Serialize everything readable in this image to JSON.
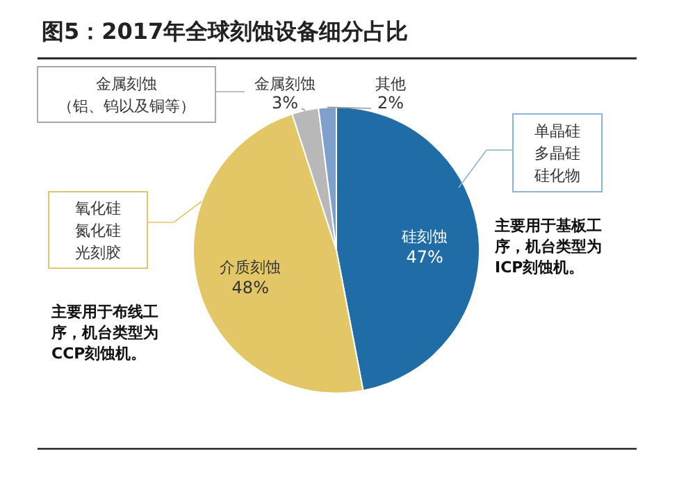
{
  "chart_data": {
    "type": "pie",
    "title": "图5：2017年全球刻蚀设备细分占比",
    "categories": [
      "硅刻蚀",
      "介质刻蚀",
      "金属刻蚀",
      "其他"
    ],
    "values": [
      47,
      48,
      3,
      2
    ],
    "value_labels": [
      "47%",
      "48%",
      "3%",
      "2%"
    ],
    "colors": [
      "#1f6ca6",
      "#e3c766",
      "#b8b8b8",
      "#7f9fcc"
    ],
    "annotations": [
      "金属刻蚀（铝、钨以及铜等）",
      "单晶硅多晶硅硅化物",
      "氧化硅氮化硅光刻胶",
      "主要用于布线工序，机台类型为CCP刻蚀机。",
      "主要用于基板工序，机台类型为ICP刻蚀机。"
    ]
  }
}
